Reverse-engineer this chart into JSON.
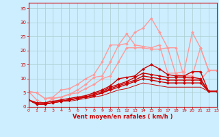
{
  "xlabel": "Vent moyen/en rafales ( km/h )",
  "bg_color": "#cceeff",
  "grid_color": "#aacccc",
  "x_ticks": [
    0,
    1,
    2,
    3,
    4,
    5,
    6,
    7,
    8,
    9,
    10,
    11,
    12,
    13,
    14,
    15,
    16,
    17,
    18,
    19,
    20,
    21,
    22,
    23
  ],
  "y_ticks": [
    0,
    5,
    10,
    15,
    20,
    25,
    30,
    35
  ],
  "xlim": [
    0,
    23
  ],
  "ylim": [
    0,
    37
  ],
  "curves": [
    {
      "x": [
        0,
        1,
        2,
        3,
        4,
        5,
        6,
        7,
        8,
        9,
        10,
        11,
        12,
        13,
        14,
        15,
        16,
        17,
        18,
        19,
        20,
        21,
        22,
        23
      ],
      "y": [
        5.5,
        5.0,
        3.0,
        3.5,
        6.0,
        6.5,
        8.0,
        10.0,
        11.5,
        16.0,
        22.0,
        22.0,
        26.0,
        22.0,
        21.5,
        21.0,
        22.0,
        12.0,
        12.0,
        12.5,
        26.5,
        21.0,
        13.0,
        13.0
      ],
      "color": "#ff9999",
      "lw": 1.0,
      "marker": "D",
      "ms": 2.0,
      "zorder": 2
    },
    {
      "x": [
        0,
        1,
        2,
        3,
        4,
        5,
        6,
        7,
        8,
        9,
        10,
        11,
        12,
        13,
        14,
        15,
        16,
        17,
        18,
        19,
        20,
        21,
        22,
        23
      ],
      "y": [
        5.5,
        2.5,
        1.0,
        3.0,
        3.5,
        4.5,
        6.0,
        8.0,
        10.5,
        11.0,
        16.0,
        22.0,
        22.5,
        26.5,
        28.0,
        31.5,
        26.5,
        21.0,
        21.0,
        10.5,
        10.0,
        9.5,
        13.0,
        13.0
      ],
      "color": "#ff9999",
      "lw": 1.0,
      "marker": "D",
      "ms": 2.0,
      "zorder": 2
    },
    {
      "x": [
        0,
        1,
        2,
        3,
        4,
        5,
        6,
        7,
        8,
        9,
        10,
        11,
        12,
        13,
        14,
        15,
        16,
        17,
        18,
        19,
        20,
        21,
        22,
        23
      ],
      "y": [
        5.5,
        5.0,
        3.0,
        3.0,
        3.5,
        4.5,
        5.0,
        6.5,
        8.0,
        10.0,
        11.0,
        16.0,
        21.0,
        21.0,
        21.0,
        20.5,
        20.5,
        21.0,
        11.5,
        11.0,
        11.0,
        21.0,
        13.0,
        13.0
      ],
      "color": "#ff9999",
      "lw": 1.0,
      "marker": "D",
      "ms": 2.0,
      "zorder": 2
    },
    {
      "x": [
        0,
        1,
        2,
        3,
        4,
        5,
        6,
        7,
        8,
        9,
        10,
        11,
        12,
        13,
        14,
        15,
        16,
        17,
        18,
        19,
        20,
        21,
        22,
        23
      ],
      "y": [
        2.5,
        1.5,
        1.5,
        2.0,
        2.5,
        3.0,
        3.5,
        4.0,
        5.0,
        6.0,
        7.5,
        10.0,
        10.5,
        11.0,
        13.5,
        15.0,
        13.5,
        11.5,
        11.0,
        11.0,
        12.5,
        12.5,
        5.5,
        5.5
      ],
      "color": "#cc0000",
      "lw": 1.0,
      "marker": "D",
      "ms": 2.0,
      "zorder": 4
    },
    {
      "x": [
        0,
        1,
        2,
        3,
        4,
        5,
        6,
        7,
        8,
        9,
        10,
        11,
        12,
        13,
        14,
        15,
        16,
        17,
        18,
        19,
        20,
        21,
        22,
        23
      ],
      "y": [
        2.5,
        1.0,
        1.0,
        1.5,
        2.0,
        2.5,
        3.0,
        3.5,
        4.5,
        5.5,
        7.0,
        8.0,
        9.0,
        10.5,
        12.0,
        11.5,
        11.0,
        10.5,
        10.5,
        10.5,
        10.5,
        10.0,
        5.5,
        5.5
      ],
      "color": "#cc0000",
      "lw": 1.0,
      "marker": "D",
      "ms": 2.0,
      "zorder": 4
    },
    {
      "x": [
        0,
        1,
        2,
        3,
        4,
        5,
        6,
        7,
        8,
        9,
        10,
        11,
        12,
        13,
        14,
        15,
        16,
        17,
        18,
        19,
        20,
        21,
        22,
        23
      ],
      "y": [
        2.5,
        1.0,
        1.0,
        1.5,
        2.0,
        2.5,
        3.0,
        3.5,
        4.0,
        5.0,
        6.5,
        7.5,
        8.5,
        9.5,
        11.0,
        10.5,
        10.0,
        9.5,
        9.5,
        9.5,
        9.5,
        9.5,
        5.5,
        5.5
      ],
      "color": "#cc0000",
      "lw": 1.0,
      "marker": "D",
      "ms": 2.0,
      "zorder": 4
    },
    {
      "x": [
        0,
        1,
        2,
        3,
        4,
        5,
        6,
        7,
        8,
        9,
        10,
        11,
        12,
        13,
        14,
        15,
        16,
        17,
        18,
        19,
        20,
        21,
        22,
        23
      ],
      "y": [
        2.5,
        1.0,
        1.0,
        1.5,
        2.0,
        2.5,
        3.0,
        3.5,
        4.0,
        5.0,
        6.0,
        7.0,
        8.0,
        9.0,
        10.0,
        9.5,
        9.0,
        8.5,
        8.5,
        8.5,
        8.5,
        8.5,
        5.5,
        5.5
      ],
      "color": "#cc0000",
      "lw": 1.0,
      "marker": "D",
      "ms": 2.0,
      "zorder": 4
    },
    {
      "x": [
        0,
        1,
        2,
        3,
        4,
        5,
        6,
        7,
        8,
        9,
        10,
        11,
        12,
        13,
        14,
        15,
        16,
        17,
        18,
        19,
        20,
        21,
        22,
        23
      ],
      "y": [
        2.5,
        1.0,
        1.0,
        1.5,
        2.0,
        2.0,
        2.5,
        3.0,
        3.5,
        4.0,
        5.0,
        6.0,
        6.5,
        7.5,
        8.5,
        8.0,
        7.5,
        7.0,
        7.0,
        7.0,
        7.0,
        7.0,
        5.5,
        5.5
      ],
      "color": "#cc0000",
      "lw": 0.7,
      "marker": null,
      "ms": 0,
      "zorder": 3
    }
  ]
}
